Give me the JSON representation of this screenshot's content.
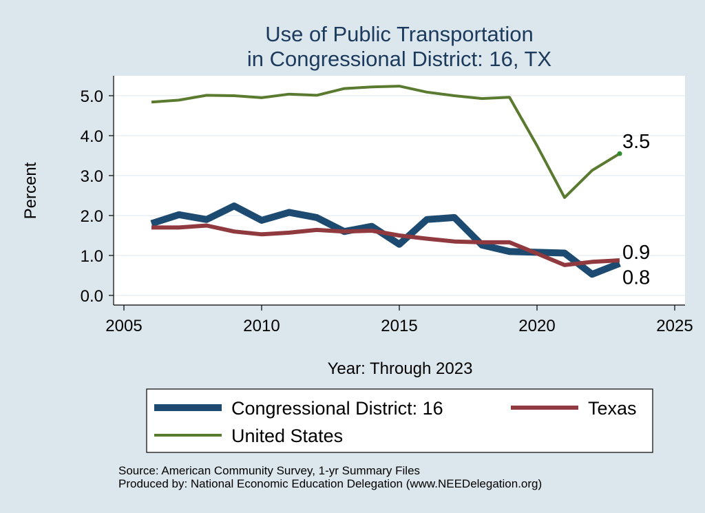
{
  "chart_data": {
    "type": "line",
    "title_line1": "Use of Public Transportation",
    "title_line2": "in Congressional District: 16, TX",
    "xlabel": "Year: Through 2023",
    "ylabel": "Percent",
    "xlim": [
      2005,
      2025
    ],
    "ylim": [
      0,
      5.3
    ],
    "x_ticks": [
      "2005",
      "2010",
      "2015",
      "2020",
      "2025"
    ],
    "y_ticks": [
      "0.0",
      "1.0",
      "2.0",
      "3.0",
      "4.0",
      "5.0"
    ],
    "grid": true,
    "legend_position": "bottom",
    "x": [
      2006,
      2007,
      2008,
      2009,
      2010,
      2011,
      2012,
      2013,
      2014,
      2015,
      2016,
      2017,
      2018,
      2019,
      2020,
      2021,
      2022,
      2023
    ],
    "series": [
      {
        "name": "Congressional District: 16",
        "color": "#1c4a70",
        "values": [
          1.8,
          2.02,
          1.9,
          2.24,
          1.88,
          2.08,
          1.95,
          1.6,
          1.73,
          1.28,
          1.9,
          1.95,
          1.26,
          1.1,
          1.08,
          1.06,
          0.53,
          0.8
        ],
        "end_label": "0.8"
      },
      {
        "name": "Texas",
        "color": "#903a40",
        "values": [
          1.7,
          1.7,
          1.75,
          1.6,
          1.53,
          1.57,
          1.64,
          1.6,
          1.62,
          1.5,
          1.42,
          1.35,
          1.33,
          1.33,
          1.05,
          0.76,
          0.84,
          0.88
        ],
        "end_label": "0.9"
      },
      {
        "name": "United States",
        "color": "#5a7a30",
        "values": [
          4.84,
          4.89,
          5.01,
          5.0,
          4.95,
          5.04,
          5.01,
          5.18,
          5.22,
          5.24,
          5.09,
          5.0,
          4.93,
          4.96,
          3.75,
          2.45,
          3.13,
          3.55
        ],
        "end_label": "3.5"
      }
    ]
  },
  "source_line1": "Source: American Community Survey, 1-yr Summary Files",
  "source_line2": "Produced by: National Economic Education Delegation (www.NEEDelegation.org)"
}
